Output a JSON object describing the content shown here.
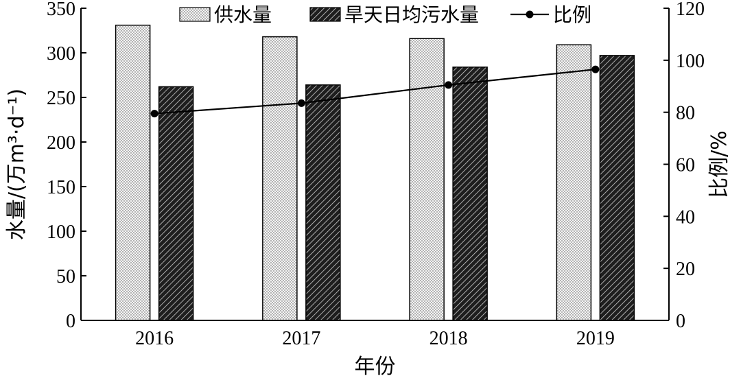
{
  "chart_data": {
    "type": "bar",
    "categories": [
      "2016",
      "2017",
      "2018",
      "2019"
    ],
    "series": [
      {
        "name": "供水量",
        "values": [
          331,
          318,
          316,
          309
        ],
        "axis": "left",
        "style": "dotted-light"
      },
      {
        "name": "旱天日均污水量",
        "values": [
          262,
          264,
          284,
          297
        ],
        "axis": "left",
        "style": "hatched-dark"
      },
      {
        "type": "line",
        "name": "比例",
        "values": [
          79.5,
          83.5,
          90.5,
          96.5
        ],
        "axis": "right"
      }
    ],
    "xlabel": "年份",
    "ylabel": "水量/(万m³·d⁻¹)",
    "y2label": "比例/%",
    "ylim": [
      0,
      350
    ],
    "y2lim": [
      0,
      120
    ],
    "yticks": [
      "0",
      "50",
      "100",
      "150",
      "200",
      "250",
      "300",
      "350"
    ],
    "y2ticks": [
      "0",
      "20",
      "40",
      "60",
      "80",
      "100",
      "120"
    ],
    "grid": false,
    "legend_position": "top-center"
  },
  "colors": {
    "bar_fill_light": "#f2f2f2",
    "bar_fill_dark": "#2b2b2b",
    "line": "#000000",
    "axis": "#000000"
  }
}
